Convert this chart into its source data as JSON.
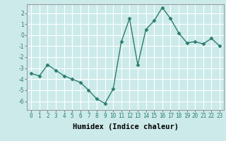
{
  "x": [
    0,
    1,
    2,
    3,
    4,
    5,
    6,
    7,
    8,
    9,
    10,
    11,
    12,
    13,
    14,
    15,
    16,
    17,
    18,
    19,
    20,
    21,
    22,
    23
  ],
  "y": [
    -3.5,
    -3.7,
    -2.7,
    -3.2,
    -3.7,
    -4.0,
    -4.3,
    -5.0,
    -5.8,
    -6.2,
    -4.9,
    -0.6,
    1.5,
    -2.7,
    0.5,
    1.3,
    2.5,
    1.5,
    0.2,
    -0.7,
    -0.6,
    -0.8,
    -0.3,
    -1.0
  ],
  "line_color": "#2d7d6e",
  "marker": "D",
  "marker_size": 2.5,
  "line_width": 1.0,
  "xlabel": "Humidex (Indice chaleur)",
  "xlim": [
    -0.5,
    23.5
  ],
  "ylim": [
    -6.8,
    2.8
  ],
  "yticks": [
    -6,
    -5,
    -4,
    -3,
    -2,
    -1,
    0,
    1,
    2
  ],
  "xticks": [
    0,
    1,
    2,
    3,
    4,
    5,
    6,
    7,
    8,
    9,
    10,
    11,
    12,
    13,
    14,
    15,
    16,
    17,
    18,
    19,
    20,
    21,
    22,
    23
  ],
  "bg_color": "#cceaea",
  "grid_color": "#ffffff",
  "tick_label_size": 5.5,
  "xlabel_size": 7.5,
  "xlabel_weight": "bold"
}
